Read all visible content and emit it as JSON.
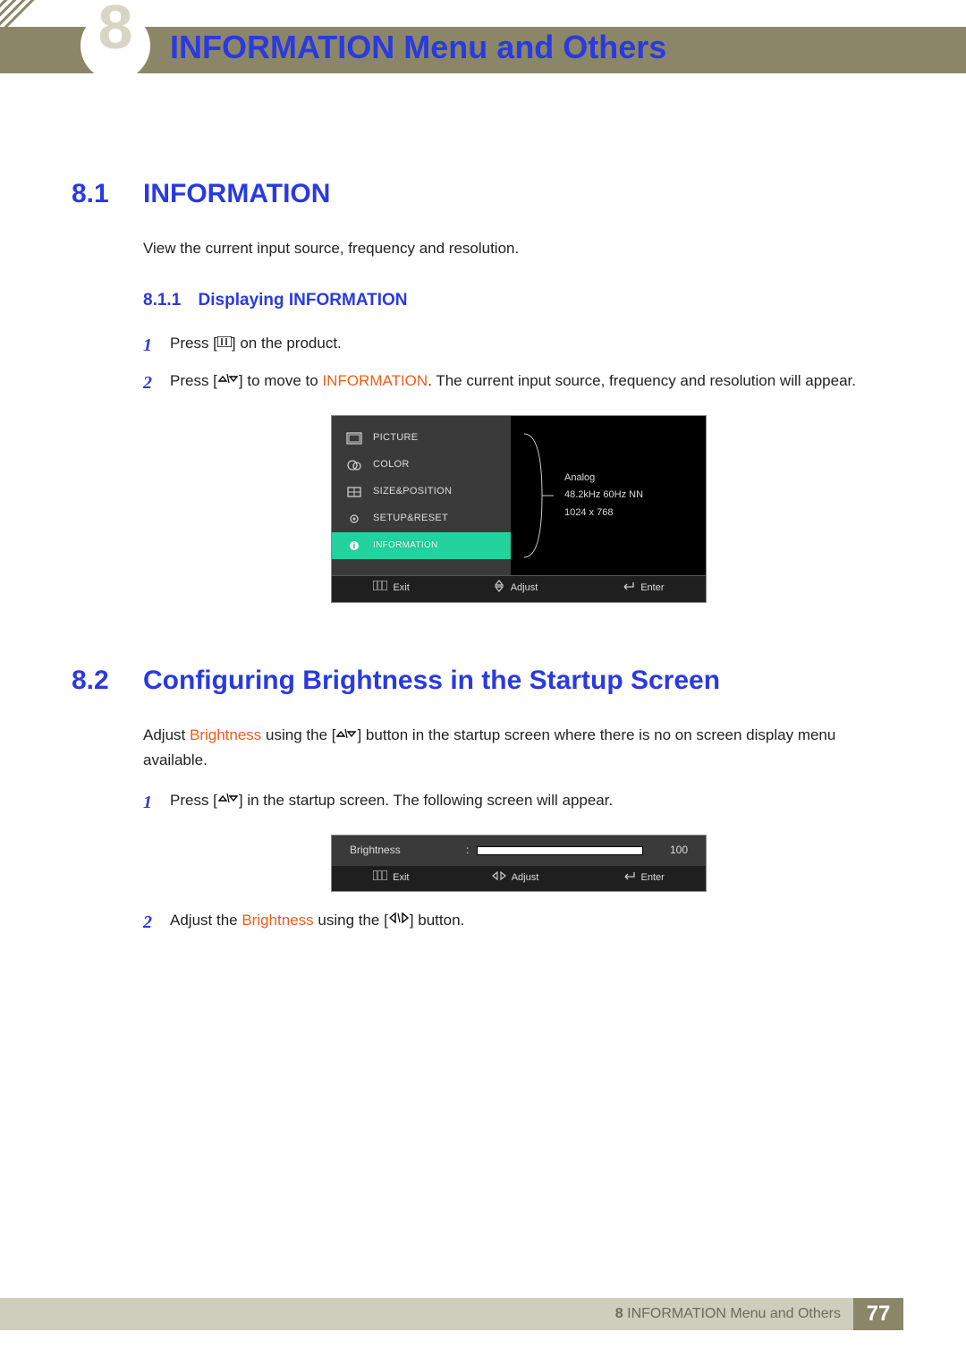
{
  "chapter": {
    "num": "8",
    "title": "INFORMATION Menu and Others"
  },
  "sec81": {
    "num": "8.1",
    "title": "INFORMATION",
    "desc": "View the current input source, frequency and resolution.",
    "sub": {
      "num": "8.1.1",
      "title": "Displaying INFORMATION"
    },
    "steps": {
      "s1a": "Press [",
      "s1b": "] on the product.",
      "s2a": "Press [",
      "s2b": "] to move to ",
      "s2hl": "INFORMATION",
      "s2c": ". The current input source, frequency and resolution will appear."
    }
  },
  "osd": {
    "menu": [
      "PICTURE",
      "COLOR",
      "SIZE&POSITION",
      "SETUP&RESET",
      "INFORMATION"
    ],
    "info": {
      "l1": "Analog",
      "l2": "48.2kHz 60Hz NN",
      "l3": "1024 x 768"
    },
    "footer": {
      "exit": "Exit",
      "adjust": "Adjust",
      "enter": "Enter"
    },
    "colors": {
      "bg": "#000000",
      "menu_bg": "#3a3a3a",
      "footer_bg": "#1f1f1f",
      "highlight": "#22d3a0",
      "text": "#dddddd",
      "border": "#888888"
    }
  },
  "sec82": {
    "num": "8.2",
    "title": "Configuring Brightness in the Startup Screen",
    "p_a": "Adjust ",
    "p_hl": "Brightness",
    "p_b": " using the [",
    "p_c": "] button in the startup screen where there is no on screen display menu available.",
    "steps": {
      "s1a": "Press [",
      "s1b": "] in the startup screen. The following screen will appear.",
      "s2a": "Adjust the ",
      "s2hl": "Brightness",
      "s2b": " using the [",
      "s2c": "] button."
    }
  },
  "bri": {
    "label": "Brightness",
    "value": "100",
    "fill_pct": 100,
    "footer": {
      "exit": "Exit",
      "adjust": "Adjust",
      "enter": "Enter"
    },
    "colors": {
      "row_bg": "#3a3a3a",
      "footer_bg": "#1f1f1f",
      "fill": "#ffffff",
      "track": "#1a1a1a",
      "text": "#dddddd"
    }
  },
  "footer": {
    "label_prefix": "8 ",
    "label": "INFORMATION Menu and Others",
    "page": "77",
    "colors": {
      "bar": "#cfcdbb",
      "bar_text": "#6b6b57",
      "num_bg": "#8b8667",
      "num_text": "#ffffff"
    }
  },
  "palette": {
    "heading_blue": "#2a3ae0",
    "highlight_orange": "#f25b1c",
    "banner": "#8b8667",
    "body_text": "#222222"
  }
}
